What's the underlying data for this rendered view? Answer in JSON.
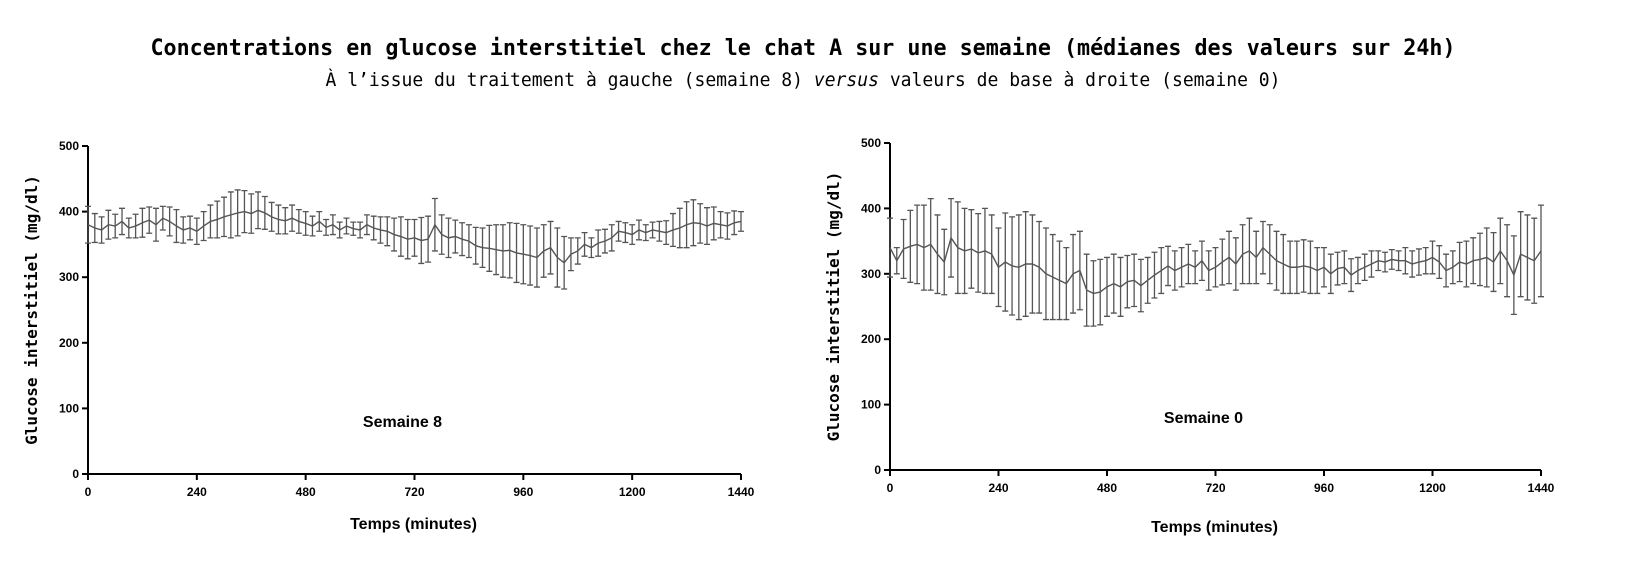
{
  "title": "Concentrations en glucose interstitiel chez le chat A sur une semaine (médianes des valeurs sur 24h)",
  "subtitle": [
    {
      "text": "À l’issue du traitement à gauche (semaine 8) ",
      "italic": false
    },
    {
      "text": "versus",
      "italic": true
    },
    {
      "text": " valeurs de base à droite (semaine 0)",
      "italic": false
    }
  ],
  "chart_data": [
    {
      "type": "line",
      "annotation": "Semaine 8",
      "x_label": "Temps (minutes)",
      "y_label": "Glucose interstitiel (mg/dl)",
      "xlim": [
        0,
        1440
      ],
      "xticks": [
        0,
        240,
        480,
        720,
        960,
        1200,
        1440
      ],
      "ylim": [
        0,
        500
      ],
      "yticks": [
        0,
        100,
        200,
        300,
        400,
        500
      ],
      "color": "#555555",
      "x": [
        0,
        15,
        30,
        45,
        60,
        75,
        90,
        105,
        120,
        135,
        150,
        165,
        180,
        195,
        210,
        225,
        240,
        255,
        270,
        285,
        300,
        315,
        330,
        345,
        360,
        375,
        390,
        405,
        420,
        435,
        450,
        465,
        480,
        495,
        510,
        525,
        540,
        555,
        570,
        585,
        600,
        615,
        630,
        645,
        660,
        675,
        690,
        705,
        720,
        735,
        750,
        765,
        780,
        795,
        810,
        825,
        840,
        855,
        870,
        885,
        900,
        915,
        930,
        945,
        960,
        975,
        990,
        1005,
        1020,
        1035,
        1050,
        1065,
        1080,
        1095,
        1110,
        1125,
        1140,
        1155,
        1170,
        1185,
        1200,
        1215,
        1230,
        1245,
        1260,
        1275,
        1290,
        1305,
        1320,
        1335,
        1350,
        1365,
        1380,
        1395,
        1410,
        1425,
        1440
      ],
      "values": [
        380,
        375,
        372,
        380,
        378,
        385,
        375,
        378,
        383,
        387,
        380,
        390,
        385,
        378,
        372,
        375,
        370,
        378,
        385,
        388,
        392,
        395,
        398,
        400,
        397,
        402,
        398,
        392,
        388,
        386,
        390,
        385,
        382,
        378,
        385,
        376,
        380,
        372,
        378,
        374,
        372,
        380,
        375,
        372,
        370,
        365,
        362,
        358,
        360,
        356,
        358,
        380,
        365,
        360,
        362,
        358,
        355,
        348,
        345,
        344,
        342,
        340,
        341,
        337,
        335,
        333,
        330,
        340,
        345,
        330,
        322,
        335,
        340,
        350,
        345,
        352,
        355,
        360,
        370,
        368,
        365,
        372,
        368,
        372,
        370,
        368,
        372,
        375,
        380,
        383,
        382,
        378,
        382,
        380,
        378,
        383,
        385
      ],
      "errors": [
        28,
        22,
        20,
        22,
        18,
        20,
        15,
        18,
        22,
        20,
        25,
        18,
        22,
        25,
        20,
        18,
        20,
        22,
        25,
        28,
        30,
        35,
        35,
        32,
        30,
        28,
        25,
        22,
        22,
        20,
        20,
        18,
        18,
        15,
        15,
        12,
        15,
        12,
        12,
        10,
        12,
        15,
        18,
        20,
        22,
        25,
        30,
        30,
        28,
        35,
        35,
        40,
        30,
        30,
        25,
        25,
        25,
        28,
        30,
        35,
        38,
        40,
        42,
        45,
        45,
        45,
        45,
        40,
        40,
        45,
        40,
        25,
        20,
        18,
        15,
        20,
        18,
        20,
        15,
        15,
        15,
        15,
        12,
        12,
        15,
        18,
        25,
        30,
        35,
        35,
        30,
        28,
        25,
        20,
        20,
        18,
        15
      ]
    },
    {
      "type": "line",
      "annotation": "Semaine 0",
      "x_label": "Temps (minutes)",
      "y_label": "Glucose interstitiel (mg/dl)",
      "xlim": [
        0,
        1440
      ],
      "xticks": [
        0,
        240,
        480,
        720,
        960,
        1200,
        1440
      ],
      "ylim": [
        0,
        500
      ],
      "yticks": [
        0,
        100,
        200,
        300,
        400,
        500
      ],
      "color": "#555555",
      "x": [
        0,
        15,
        30,
        45,
        60,
        75,
        90,
        105,
        120,
        135,
        150,
        165,
        180,
        195,
        210,
        225,
        240,
        255,
        270,
        285,
        300,
        315,
        330,
        345,
        360,
        375,
        390,
        405,
        420,
        435,
        450,
        465,
        480,
        495,
        510,
        525,
        540,
        555,
        570,
        585,
        600,
        615,
        630,
        645,
        660,
        675,
        690,
        705,
        720,
        735,
        750,
        765,
        780,
        795,
        810,
        825,
        840,
        855,
        870,
        885,
        900,
        915,
        930,
        945,
        960,
        975,
        990,
        1005,
        1020,
        1035,
        1050,
        1065,
        1080,
        1095,
        1110,
        1125,
        1140,
        1155,
        1170,
        1185,
        1200,
        1215,
        1230,
        1245,
        1260,
        1275,
        1290,
        1305,
        1320,
        1335,
        1350,
        1365,
        1380,
        1395,
        1410,
        1425,
        1440
      ],
      "values": [
        340,
        320,
        338,
        342,
        345,
        340,
        345,
        330,
        318,
        355,
        340,
        335,
        338,
        332,
        335,
        330,
        310,
        318,
        312,
        310,
        315,
        315,
        310,
        300,
        295,
        290,
        285,
        300,
        305,
        275,
        270,
        272,
        280,
        285,
        280,
        288,
        290,
        282,
        290,
        298,
        305,
        312,
        305,
        310,
        315,
        310,
        320,
        305,
        310,
        318,
        325,
        315,
        330,
        335,
        325,
        340,
        330,
        320,
        315,
        310,
        310,
        312,
        310,
        305,
        310,
        300,
        308,
        310,
        298,
        305,
        310,
        315,
        320,
        318,
        322,
        320,
        320,
        315,
        318,
        320,
        325,
        318,
        305,
        310,
        318,
        315,
        320,
        322,
        325,
        318,
        335,
        320,
        298,
        330,
        325,
        320,
        335
      ],
      "errors": [
        45,
        20,
        45,
        55,
        60,
        65,
        70,
        60,
        50,
        60,
        70,
        65,
        60,
        60,
        65,
        60,
        60,
        75,
        75,
        80,
        80,
        75,
        70,
        70,
        65,
        60,
        55,
        60,
        60,
        55,
        50,
        50,
        45,
        45,
        45,
        40,
        40,
        40,
        35,
        35,
        35,
        30,
        30,
        30,
        30,
        25,
        30,
        30,
        30,
        35,
        40,
        40,
        45,
        50,
        40,
        40,
        45,
        45,
        45,
        40,
        40,
        40,
        40,
        35,
        30,
        30,
        25,
        25,
        25,
        20,
        20,
        20,
        15,
        15,
        15,
        15,
        20,
        20,
        20,
        20,
        25,
        25,
        25,
        25,
        30,
        35,
        35,
        40,
        45,
        45,
        50,
        55,
        60,
        65,
        65,
        65,
        70
      ]
    }
  ]
}
